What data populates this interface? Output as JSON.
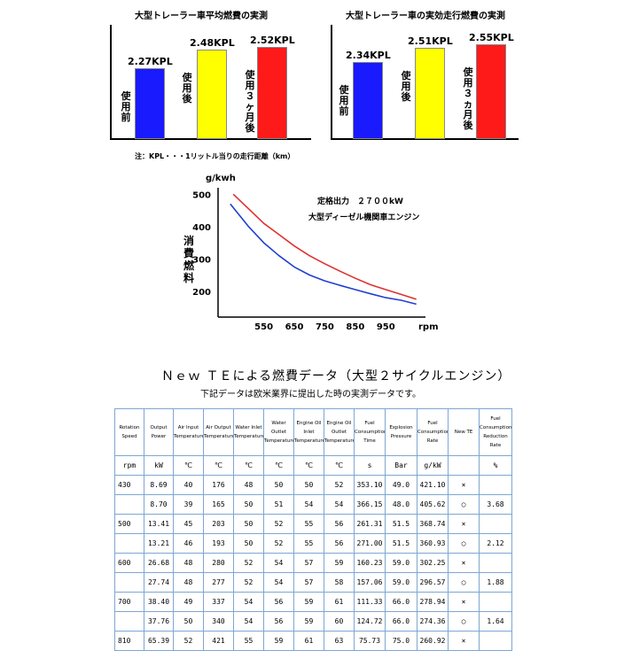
{
  "top_charts": {
    "left": {
      "title": "大型トレーラー車平均燃費の実測",
      "bars": [
        {
          "value": 2.27,
          "value_label": "2.27KPL",
          "category": "使用前",
          "color": "#1a1aff"
        },
        {
          "value": 2.48,
          "value_label": "2.48KPL",
          "category": "使用後",
          "color": "#ffff00"
        },
        {
          "value": 2.52,
          "value_label": "2.52KPL",
          "category": "使用３ヶ月後",
          "color": "#ff1a1a"
        }
      ]
    },
    "right": {
      "title": "大型トレーラー車の実効走行燃費の実測",
      "bars": [
        {
          "value": 2.34,
          "value_label": "2.34KPL",
          "category": "使用前",
          "color": "#1a1aff"
        },
        {
          "value": 2.51,
          "value_label": "2.51KPL",
          "category": "使用後",
          "color": "#ffff00"
        },
        {
          "value": 2.55,
          "value_label": "2.55KPL",
          "category": "使用３ヵ月後",
          "color": "#ff1a1a"
        }
      ]
    },
    "note": "注：KPL・・・1リットル当りの走行距離（km）"
  },
  "chart_data": [
    {
      "type": "bar",
      "title": "大型トレーラー車平均燃費の実測",
      "categories": [
        "使用前",
        "使用後",
        "使用３ヶ月後"
      ],
      "values": [
        2.27,
        2.48,
        2.52
      ],
      "value_labels": [
        "2.27KPL",
        "2.48KPL",
        "2.52KPL"
      ]
    },
    {
      "type": "bar",
      "title": "大型トレーラー車の実効走行燃費の実測",
      "categories": [
        "使用前",
        "使用後",
        "使用３ヵ月後"
      ],
      "values": [
        2.34,
        2.51,
        2.55
      ],
      "value_labels": [
        "2.34KPL",
        "2.51KPL",
        "2.55KPL"
      ]
    },
    {
      "type": "line",
      "ylabel": "消費燃料",
      "yunit": "g/kwh",
      "xunit": "rpm",
      "annotation_1": "定格出力　２７００kW",
      "annotation_2": "大型ディーゼル機関車エンジン",
      "xticks": [
        550,
        650,
        750,
        850,
        950
      ],
      "yticks": [
        200,
        300,
        400,
        500
      ],
      "xlim": [
        400,
        1080
      ],
      "ylim": [
        120,
        520
      ],
      "series": [
        {
          "name": "red",
          "color": "#e03030",
          "x": [
            450,
            500,
            550,
            600,
            650,
            700,
            750,
            800,
            850,
            900,
            950,
            1000,
            1050
          ],
          "y": [
            500,
            455,
            410,
            375,
            340,
            310,
            285,
            262,
            240,
            220,
            205,
            190,
            175
          ]
        },
        {
          "name": "blue",
          "color": "#2040d0",
          "x": [
            440,
            500,
            550,
            600,
            650,
            700,
            750,
            800,
            850,
            900,
            950,
            1000,
            1050
          ],
          "y": [
            470,
            400,
            350,
            310,
            275,
            250,
            232,
            218,
            205,
            192,
            180,
            172,
            160
          ]
        }
      ]
    }
  ],
  "table_section": {
    "heading": "Ｎｅｗ ＴＥによる燃費データ（大型２サイクルエンジン）",
    "subheading": "下記データは欧米業界に提出した時の実測データです。",
    "headers": [
      "Rotation Speed",
      "Output Power",
      "Air Input Temperature",
      "Air Output Temperature",
      "Water Inlet Temperature",
      "Water Outlet Temperature",
      "Engine Oil Inlet Temperature",
      "Engine Oil Outlet Temperature",
      "Fuel Consumption Time",
      "Explosion Pressure",
      "Fuel Consumption Rate",
      "New TE",
      "Fuel Consumption Reduction Rate"
    ],
    "units": [
      "rpm",
      "kW",
      "℃",
      "℃",
      "℃",
      "℃",
      "℃",
      "℃",
      "s",
      "Bar",
      "g/kW",
      "",
      "%"
    ],
    "rows": [
      [
        "430",
        "8.69",
        "40",
        "176",
        "48",
        "50",
        "50",
        "52",
        "353.10",
        "49.0",
        "421.10",
        "×",
        ""
      ],
      [
        "",
        "8.70",
        "39",
        "165",
        "50",
        "51",
        "54",
        "54",
        "366.15",
        "48.0",
        "405.62",
        "○",
        "3.68"
      ],
      [
        "500",
        "13.41",
        "45",
        "203",
        "50",
        "52",
        "55",
        "56",
        "261.31",
        "51.5",
        "368.74",
        "×",
        ""
      ],
      [
        "",
        "13.21",
        "46",
        "193",
        "50",
        "52",
        "55",
        "56",
        "271.00",
        "51.5",
        "360.93",
        "○",
        "2.12"
      ],
      [
        "600",
        "26.68",
        "48",
        "280",
        "52",
        "54",
        "57",
        "59",
        "160.23",
        "59.0",
        "302.25",
        "×",
        ""
      ],
      [
        "",
        "27.74",
        "48",
        "277",
        "52",
        "54",
        "57",
        "58",
        "157.06",
        "59.0",
        "296.57",
        "○",
        "1.88"
      ],
      [
        "700",
        "38.40",
        "49",
        "337",
        "54",
        "56",
        "59",
        "61",
        "111.33",
        "66.0",
        "278.94",
        "×",
        ""
      ],
      [
        "",
        "37.76",
        "50",
        "340",
        "54",
        "56",
        "59",
        "60",
        "124.72",
        "66.0",
        "274.36",
        "○",
        "1.64"
      ],
      [
        "810",
        "65.39",
        "52",
        "421",
        "55",
        "59",
        "61",
        "63",
        "75.73",
        "75.0",
        "260.92",
        "×",
        ""
      ]
    ]
  }
}
